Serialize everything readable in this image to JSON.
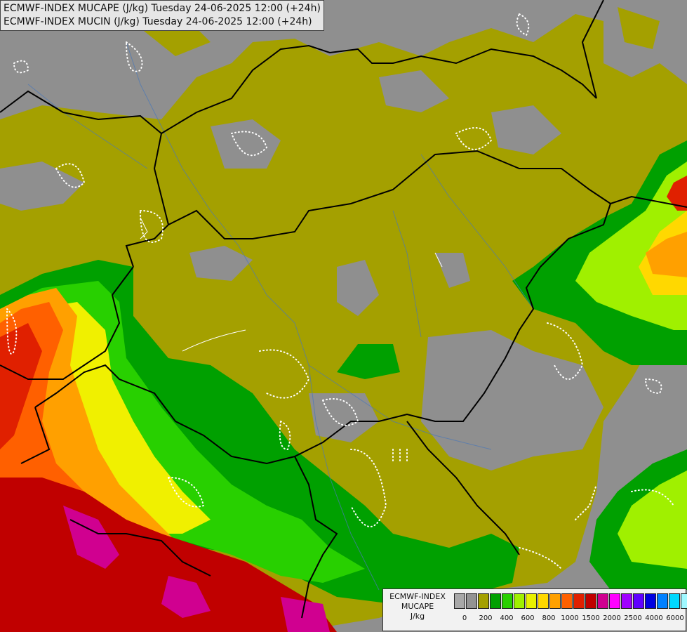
{
  "title": {
    "line1": "ECMWF-INDEX MUCAPE (J/kg) Tuesday 24-06-2025 12:00 (+24h)",
    "line2": "ECMWF-INDEX MUCIN (J/kg) Tuesday 24-06-2025 12:00 (+24h)"
  },
  "legend": {
    "line1": "ECMWF-INDEX",
    "line2": "MUCAPE",
    "unit": "J/kg",
    "colors": [
      "#a8a8a8",
      "#939393",
      "#a4a000",
      "#00a000",
      "#28d000",
      "#a0f000",
      "#e8f000",
      "#ffd800",
      "#ffa000",
      "#ff6000",
      "#e02000",
      "#c00000",
      "#d00090",
      "#ff00ff",
      "#a000ff",
      "#6000ff",
      "#0000e0",
      "#0080ff",
      "#00d8ff",
      "#a0f8ff",
      "#ffffff"
    ],
    "ticks": [
      {
        "label": "0",
        "index": 1
      },
      {
        "label": "200",
        "index": 3
      },
      {
        "label": "400",
        "index": 5
      },
      {
        "label": "600",
        "index": 7
      },
      {
        "label": "800",
        "index": 9
      },
      {
        "label": "1000",
        "index": 11
      },
      {
        "label": "1500",
        "index": 13
      },
      {
        "label": "2000",
        "index": 15
      },
      {
        "label": "2500",
        "index": 17
      },
      {
        "label": "4000",
        "index": 19
      },
      {
        "label": "6000",
        "index": 21
      }
    ]
  },
  "colors": {
    "grey": "#8f8f8f",
    "olive": "#a4a000",
    "green": "#00a000",
    "lightgreen": "#28d000",
    "lime": "#a0f000",
    "yellow": "#f0f000",
    "gold": "#ffd800",
    "orange": "#ffa000",
    "darkorange": "#ff6000",
    "red": "#e02000",
    "darkred": "#c00000",
    "magenta": "#d00090"
  }
}
